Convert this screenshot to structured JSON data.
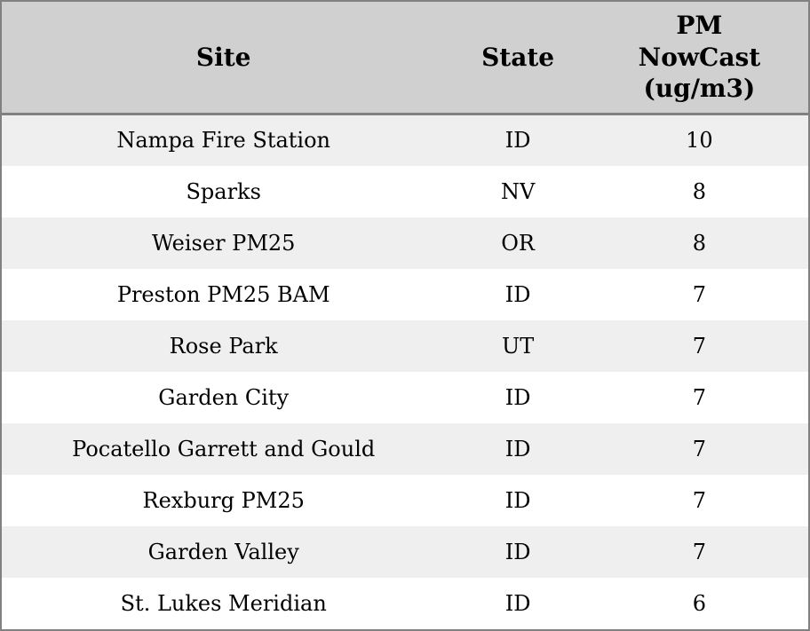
{
  "chart_data": {
    "type": "table",
    "columns": [
      "Site",
      "State",
      "PM NowCast (ug/m3)"
    ],
    "rows": [
      [
        "Nampa Fire Station",
        "ID",
        10
      ],
      [
        "Sparks",
        "NV",
        8
      ],
      [
        "Weiser PM25",
        "OR",
        8
      ],
      [
        "Preston PM25 BAM",
        "ID",
        7
      ],
      [
        "Rose Park",
        "UT",
        7
      ],
      [
        "Garden City",
        "ID",
        7
      ],
      [
        "Pocatello Garrett and Gould",
        "ID",
        7
      ],
      [
        "Rexburg PM25",
        "ID",
        7
      ],
      [
        "Garden Valley",
        "ID",
        7
      ],
      [
        "St. Lukes Meridian",
        "ID",
        6
      ]
    ]
  },
  "colors": {
    "header_bg": "#d0d0d0",
    "row_alt_bg": "#efefef",
    "row_bg": "#ffffff",
    "border": "#818181",
    "text": "#000000"
  }
}
